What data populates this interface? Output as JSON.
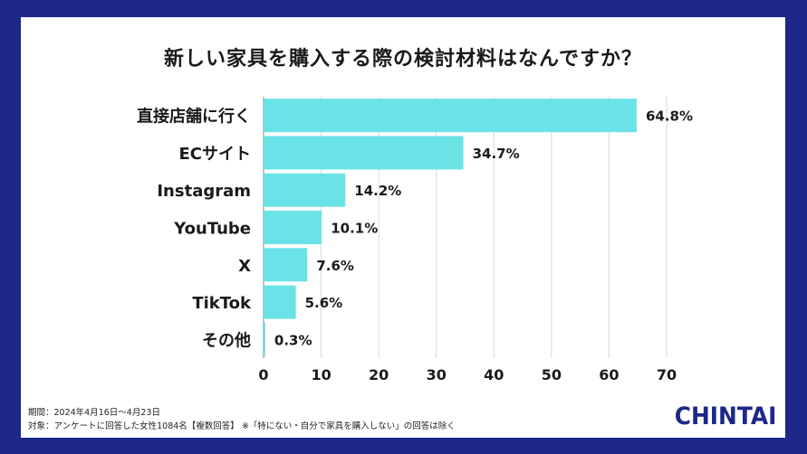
{
  "chart_data": {
    "type": "bar",
    "orientation": "horizontal",
    "title": "新しい家具を購入する際の検討材料はなんですか？",
    "categories": [
      "直接店舗に行く",
      "ECサイト",
      "Instagram",
      "YouTube",
      "X",
      "TikTok",
      "その他"
    ],
    "values": [
      64.8,
      34.7,
      14.2,
      10.1,
      7.6,
      5.6,
      0.3
    ],
    "value_labels": [
      "64.8%",
      "34.7%",
      "14.2%",
      "10.1%",
      "7.6%",
      "5.6%",
      "0.3%"
    ],
    "xlim": [
      0,
      70
    ],
    "x_ticks": [
      0,
      10,
      20,
      30,
      40,
      50,
      60,
      70
    ],
    "bar_color": "#6ae3e6",
    "grid": true
  },
  "footnotes": {
    "period": "期間：2024年4月16日〜4月23日",
    "subject": "対象：アンケートに回答した女性1084名【複数回答】 ※「特にない・自分で家具を購入しない」の回答は除く"
  },
  "logo": "CHINTAI",
  "colors": {
    "background": "#1d2888",
    "bar": "#6ae3e6",
    "text": "#1a1a1a"
  }
}
